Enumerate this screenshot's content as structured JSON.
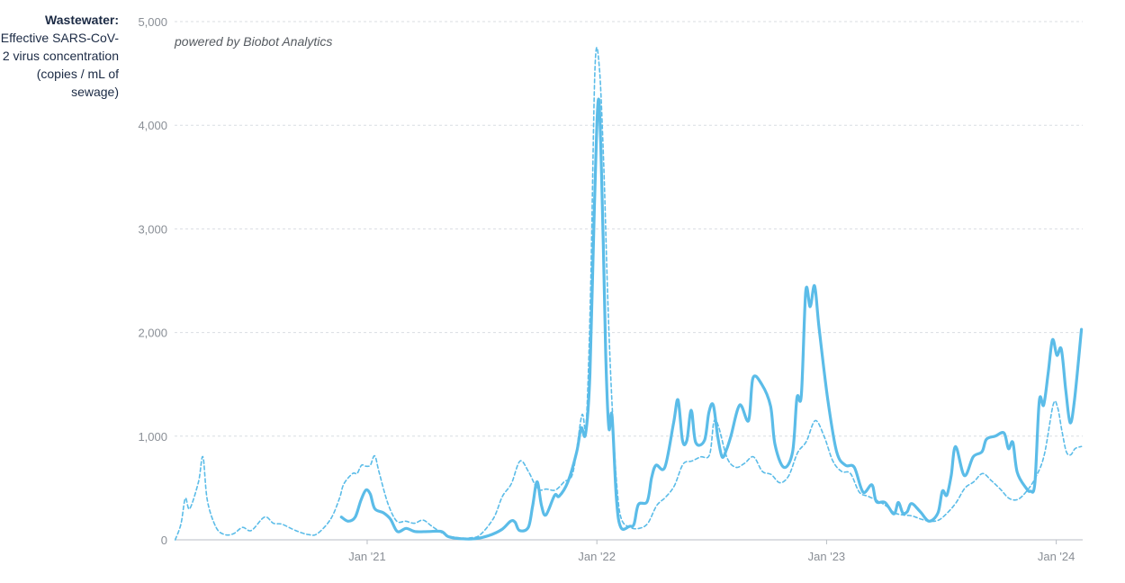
{
  "ylabel_title": "Wastewater:",
  "ylabel_sub": "Effective SARS-CoV-2 virus concentration (copies / mL of sewage)",
  "credit": "powered by Biobot Analytics",
  "colors": {
    "line": "#5bbce8",
    "grid": "#d9dde2",
    "tick": "#8a8f96"
  },
  "chart_data": {
    "type": "line",
    "ylim": [
      0,
      5000
    ],
    "yticks": [
      0,
      1000,
      2000,
      3000,
      4000,
      5000
    ],
    "ytick_labels": [
      "0",
      "1,000",
      "2,000",
      "3,000",
      "4,000",
      "5,000"
    ],
    "xlim": [
      "2020-03-01",
      "2024-02-12"
    ],
    "xticks": [
      "2021-01-01",
      "2022-01-01",
      "2023-01-01",
      "2024-01-01"
    ],
    "xtick_labels": [
      "Jan '21",
      "Jan '22",
      "Jan '23",
      "Jan '24"
    ],
    "grid": true,
    "series": [
      {
        "style": "solid",
        "points": [
          [
            "2020-11-21",
            220
          ],
          [
            "2020-12-02",
            180
          ],
          [
            "2020-12-13",
            220
          ],
          [
            "2020-12-22",
            380
          ],
          [
            "2020-12-30",
            480
          ],
          [
            "2021-01-06",
            440
          ],
          [
            "2021-01-13",
            300
          ],
          [
            "2021-01-27",
            260
          ],
          [
            "2021-02-07",
            200
          ],
          [
            "2021-02-18",
            80
          ],
          [
            "2021-03-04",
            110
          ],
          [
            "2021-03-18",
            80
          ],
          [
            "2021-04-08",
            80
          ],
          [
            "2021-04-29",
            80
          ],
          [
            "2021-05-10",
            30
          ],
          [
            "2021-05-31",
            10
          ],
          [
            "2021-06-21",
            10
          ],
          [
            "2021-07-13",
            40
          ],
          [
            "2021-08-03",
            100
          ],
          [
            "2021-08-17",
            180
          ],
          [
            "2021-08-24",
            170
          ],
          [
            "2021-08-31",
            90
          ],
          [
            "2021-09-14",
            120
          ],
          [
            "2021-09-21",
            330
          ],
          [
            "2021-09-28",
            560
          ],
          [
            "2021-10-05",
            330
          ],
          [
            "2021-10-12",
            240
          ],
          [
            "2021-10-26",
            430
          ],
          [
            "2021-11-02",
            420
          ],
          [
            "2021-11-16",
            560
          ],
          [
            "2021-11-30",
            850
          ],
          [
            "2021-12-07",
            1080
          ],
          [
            "2021-12-14",
            1020
          ],
          [
            "2021-12-21",
            1600
          ],
          [
            "2021-12-28",
            3200
          ],
          [
            "2022-01-04",
            4250
          ],
          [
            "2022-01-11",
            2900
          ],
          [
            "2022-01-15",
            1800
          ],
          [
            "2022-01-20",
            1080
          ],
          [
            "2022-01-25",
            1200
          ],
          [
            "2022-02-01",
            400
          ],
          [
            "2022-02-08",
            120
          ],
          [
            "2022-02-22",
            130
          ],
          [
            "2022-03-01",
            150
          ],
          [
            "2022-03-08",
            340
          ],
          [
            "2022-03-22",
            370
          ],
          [
            "2022-03-29",
            600
          ],
          [
            "2022-04-05",
            720
          ],
          [
            "2022-04-19",
            700
          ],
          [
            "2022-05-03",
            1130
          ],
          [
            "2022-05-10",
            1350
          ],
          [
            "2022-05-17",
            960
          ],
          [
            "2022-05-24",
            960
          ],
          [
            "2022-05-31",
            1250
          ],
          [
            "2022-06-07",
            940
          ],
          [
            "2022-06-21",
            960
          ],
          [
            "2022-06-28",
            1230
          ],
          [
            "2022-07-05",
            1300
          ],
          [
            "2022-07-12",
            1000
          ],
          [
            "2022-07-19",
            800
          ],
          [
            "2022-07-26",
            870
          ],
          [
            "2022-08-02",
            1000
          ],
          [
            "2022-08-16",
            1300
          ],
          [
            "2022-08-30",
            1150
          ],
          [
            "2022-09-06",
            1560
          ],
          [
            "2022-09-20",
            1500
          ],
          [
            "2022-10-04",
            1290
          ],
          [
            "2022-10-11",
            920
          ],
          [
            "2022-10-25",
            700
          ],
          [
            "2022-11-08",
            850
          ],
          [
            "2022-11-15",
            1370
          ],
          [
            "2022-11-22",
            1400
          ],
          [
            "2022-11-29",
            2400
          ],
          [
            "2022-12-06",
            2250
          ],
          [
            "2022-12-13",
            2450
          ],
          [
            "2022-12-20",
            2050
          ],
          [
            "2023-01-03",
            1350
          ],
          [
            "2023-01-17",
            850
          ],
          [
            "2023-01-31",
            720
          ],
          [
            "2023-02-14",
            700
          ],
          [
            "2023-02-28",
            460
          ],
          [
            "2023-03-14",
            530
          ],
          [
            "2023-03-21",
            370
          ],
          [
            "2023-04-04",
            360
          ],
          [
            "2023-04-18",
            250
          ],
          [
            "2023-04-25",
            360
          ],
          [
            "2023-05-02",
            260
          ],
          [
            "2023-05-09",
            270
          ],
          [
            "2023-05-16",
            350
          ],
          [
            "2023-05-30",
            270
          ],
          [
            "2023-06-13",
            180
          ],
          [
            "2023-06-27",
            260
          ],
          [
            "2023-07-04",
            470
          ],
          [
            "2023-07-11",
            430
          ],
          [
            "2023-07-18",
            620
          ],
          [
            "2023-07-25",
            900
          ],
          [
            "2023-08-08",
            620
          ],
          [
            "2023-08-22",
            800
          ],
          [
            "2023-09-05",
            850
          ],
          [
            "2023-09-12",
            970
          ],
          [
            "2023-09-26",
            1000
          ],
          [
            "2023-10-10",
            1030
          ],
          [
            "2023-10-17",
            880
          ],
          [
            "2023-10-24",
            940
          ],
          [
            "2023-10-31",
            650
          ],
          [
            "2023-11-14",
            500
          ],
          [
            "2023-11-21",
            470
          ],
          [
            "2023-11-28",
            550
          ],
          [
            "2023-12-05",
            1340
          ],
          [
            "2023-12-12",
            1300
          ],
          [
            "2023-12-19",
            1600
          ],
          [
            "2023-12-26",
            1930
          ],
          [
            "2024-01-02",
            1780
          ],
          [
            "2024-01-09",
            1840
          ],
          [
            "2024-01-16",
            1450
          ],
          [
            "2024-01-23",
            1130
          ],
          [
            "2024-01-30",
            1350
          ],
          [
            "2024-02-10",
            2030
          ]
        ]
      },
      {
        "style": "dashed",
        "points": [
          [
            "2020-03-02",
            0
          ],
          [
            "2020-03-11",
            150
          ],
          [
            "2020-03-18",
            400
          ],
          [
            "2020-03-25",
            300
          ],
          [
            "2020-04-08",
            560
          ],
          [
            "2020-04-15",
            800
          ],
          [
            "2020-04-22",
            380
          ],
          [
            "2020-05-06",
            120
          ],
          [
            "2020-05-20",
            50
          ],
          [
            "2020-06-03",
            60
          ],
          [
            "2020-06-17",
            120
          ],
          [
            "2020-07-01",
            90
          ],
          [
            "2020-07-22",
            220
          ],
          [
            "2020-08-05",
            160
          ],
          [
            "2020-08-19",
            150
          ],
          [
            "2020-09-09",
            90
          ],
          [
            "2020-09-30",
            50
          ],
          [
            "2020-10-14",
            60
          ],
          [
            "2020-11-04",
            200
          ],
          [
            "2020-11-18",
            400
          ],
          [
            "2020-11-25",
            540
          ],
          [
            "2020-12-09",
            640
          ],
          [
            "2020-12-16",
            640
          ],
          [
            "2020-12-23",
            720
          ],
          [
            "2020-12-30",
            710
          ],
          [
            "2021-01-06",
            720
          ],
          [
            "2021-01-13",
            810
          ],
          [
            "2021-01-20",
            650
          ],
          [
            "2021-02-03",
            350
          ],
          [
            "2021-02-17",
            180
          ],
          [
            "2021-03-03",
            180
          ],
          [
            "2021-03-17",
            160
          ],
          [
            "2021-03-31",
            190
          ],
          [
            "2021-04-14",
            130
          ],
          [
            "2021-05-05",
            50
          ],
          [
            "2021-05-26",
            20
          ],
          [
            "2021-06-16",
            20
          ],
          [
            "2021-06-30",
            50
          ],
          [
            "2021-07-21",
            210
          ],
          [
            "2021-08-04",
            420
          ],
          [
            "2021-08-18",
            540
          ],
          [
            "2021-09-01",
            760
          ],
          [
            "2021-09-15",
            650
          ],
          [
            "2021-09-29",
            490
          ],
          [
            "2021-10-13",
            490
          ],
          [
            "2021-10-27",
            480
          ],
          [
            "2021-11-10",
            560
          ],
          [
            "2021-11-24",
            650
          ],
          [
            "2021-12-08",
            1200
          ],
          [
            "2021-12-15",
            1120
          ],
          [
            "2021-12-22",
            2400
          ],
          [
            "2021-12-29",
            4550
          ],
          [
            "2022-01-05",
            4550
          ],
          [
            "2022-01-12",
            3600
          ],
          [
            "2022-01-19",
            2200
          ],
          [
            "2022-01-26",
            1200
          ],
          [
            "2022-02-02",
            500
          ],
          [
            "2022-02-09",
            200
          ],
          [
            "2022-02-23",
            120
          ],
          [
            "2022-03-09",
            110
          ],
          [
            "2022-03-23",
            160
          ],
          [
            "2022-04-06",
            330
          ],
          [
            "2022-04-20",
            410
          ],
          [
            "2022-05-04",
            520
          ],
          [
            "2022-05-18",
            730
          ],
          [
            "2022-06-01",
            760
          ],
          [
            "2022-06-15",
            800
          ],
          [
            "2022-06-29",
            820
          ],
          [
            "2022-07-06",
            1140
          ],
          [
            "2022-07-13",
            1100
          ],
          [
            "2022-07-27",
            790
          ],
          [
            "2022-08-10",
            700
          ],
          [
            "2022-08-24",
            740
          ],
          [
            "2022-09-07",
            800
          ],
          [
            "2022-09-21",
            660
          ],
          [
            "2022-10-05",
            630
          ],
          [
            "2022-10-19",
            550
          ],
          [
            "2022-11-02",
            620
          ],
          [
            "2022-11-16",
            840
          ],
          [
            "2022-11-30",
            950
          ],
          [
            "2022-12-14",
            1150
          ],
          [
            "2022-12-28",
            1000
          ],
          [
            "2023-01-11",
            760
          ],
          [
            "2023-01-25",
            660
          ],
          [
            "2023-02-08",
            640
          ],
          [
            "2023-02-22",
            460
          ],
          [
            "2023-03-08",
            420
          ],
          [
            "2023-03-22",
            380
          ],
          [
            "2023-04-05",
            330
          ],
          [
            "2023-04-19",
            260
          ],
          [
            "2023-05-03",
            240
          ],
          [
            "2023-05-17",
            230
          ],
          [
            "2023-05-31",
            200
          ],
          [
            "2023-06-14",
            180
          ],
          [
            "2023-06-28",
            190
          ],
          [
            "2023-07-12",
            260
          ],
          [
            "2023-07-26",
            360
          ],
          [
            "2023-08-09",
            500
          ],
          [
            "2023-08-23",
            560
          ],
          [
            "2023-09-06",
            640
          ],
          [
            "2023-09-20",
            570
          ],
          [
            "2023-10-04",
            490
          ],
          [
            "2023-10-18",
            400
          ],
          [
            "2023-11-01",
            390
          ],
          [
            "2023-11-15",
            470
          ],
          [
            "2023-11-29",
            600
          ],
          [
            "2023-12-13",
            820
          ],
          [
            "2023-12-27",
            1300
          ],
          [
            "2024-01-03",
            1280
          ],
          [
            "2024-01-10",
            1050
          ],
          [
            "2024-01-17",
            850
          ],
          [
            "2024-01-24",
            820
          ],
          [
            "2024-01-31",
            880
          ],
          [
            "2024-02-10",
            900
          ]
        ]
      }
    ]
  }
}
